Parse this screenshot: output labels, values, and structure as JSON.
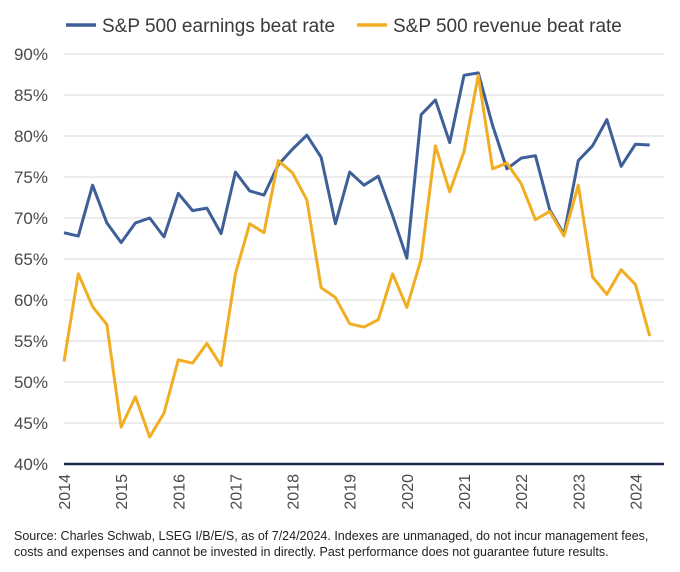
{
  "chart_data": {
    "type": "line",
    "title": "",
    "xlabel": "",
    "ylabel": "",
    "ylim": [
      40,
      90
    ],
    "y_ticks": [
      "40%",
      "45%",
      "50%",
      "55%",
      "60%",
      "65%",
      "70%",
      "75%",
      "80%",
      "85%",
      "90%"
    ],
    "x_tick_labels": [
      "2014",
      "2015",
      "2016",
      "2017",
      "2018",
      "2019",
      "2020",
      "2021",
      "2022",
      "2023",
      "2024"
    ],
    "x_range": [
      2014,
      2024.5
    ],
    "grid": "horizontal",
    "legend_position": "top",
    "x": [
      2014.0,
      2014.25,
      2014.5,
      2014.75,
      2015.0,
      2015.25,
      2015.5,
      2015.75,
      2016.0,
      2016.25,
      2016.5,
      2016.75,
      2017.0,
      2017.25,
      2017.5,
      2017.75,
      2018.0,
      2018.25,
      2018.5,
      2018.75,
      2019.0,
      2019.25,
      2019.5,
      2019.75,
      2020.0,
      2020.25,
      2020.5,
      2020.75,
      2021.0,
      2021.25,
      2021.5,
      2021.75,
      2022.0,
      2022.25,
      2022.5,
      2022.75,
      2023.0,
      2023.25,
      2023.5,
      2023.75,
      2024.0,
      2024.25
    ],
    "series": [
      {
        "name": "S&P 500 earnings beat rate",
        "color": "#3e5f97",
        "values": [
          68.2,
          67.8,
          74.0,
          69.4,
          67.0,
          69.4,
          70.0,
          67.7,
          73.0,
          70.9,
          71.2,
          68.1,
          75.6,
          73.3,
          72.8,
          76.5,
          78.4,
          80.1,
          77.4,
          69.3,
          75.6,
          74.0,
          75.1,
          70.3,
          65.1,
          82.6,
          84.4,
          79.2,
          87.4,
          87.7,
          81.3,
          76.0,
          77.3,
          77.6,
          71.0,
          68.0,
          77.0,
          78.8,
          82.0,
          76.3,
          79.0,
          78.9
        ]
      },
      {
        "name": "S&P 500 revenue beat rate",
        "color": "#f2ae23",
        "values": [
          52.5,
          63.2,
          59.2,
          57.0,
          44.5,
          48.2,
          43.3,
          46.2,
          52.7,
          52.3,
          54.7,
          52.0,
          63.2,
          69.3,
          68.2,
          77.0,
          75.5,
          72.2,
          61.5,
          60.3,
          57.1,
          56.7,
          57.6,
          63.2,
          59.1,
          65.0,
          78.8,
          73.2,
          78.1,
          87.4,
          76.0,
          76.7,
          74.2,
          69.8,
          70.8,
          67.8,
          74.0,
          62.8,
          60.7,
          63.7,
          61.9,
          55.6
        ]
      }
    ]
  },
  "source_note": "Source: Charles Schwab, LSEG I/B/E/S, as of 7/24/2024.  Indexes are unmanaged, do not incur management fees, costs and expenses and cannot be invested in directly.  Past performance does not guarantee future results."
}
